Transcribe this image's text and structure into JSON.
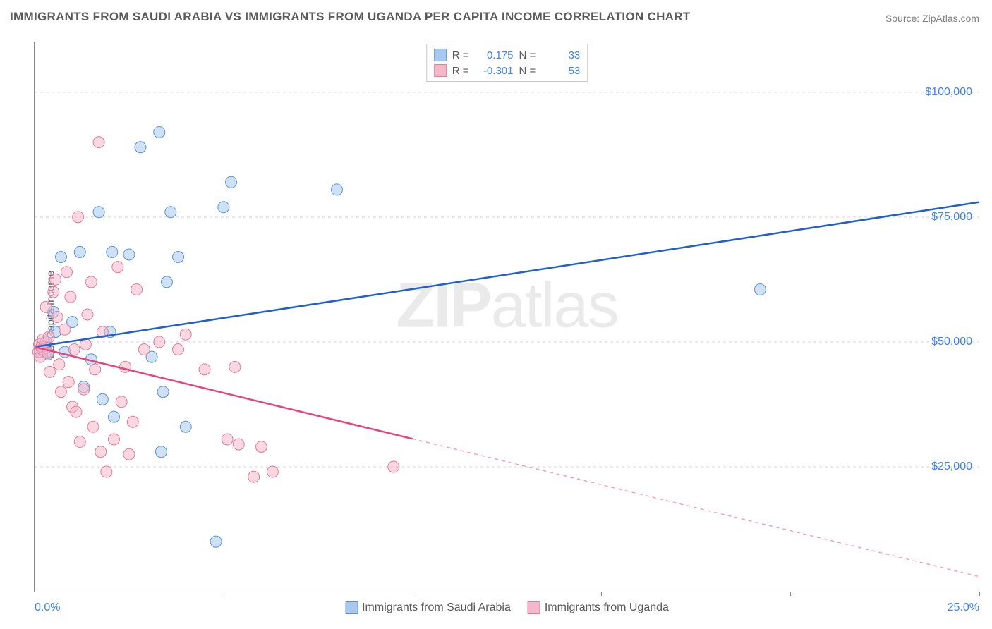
{
  "title": "IMMIGRANTS FROM SAUDI ARABIA VS IMMIGRANTS FROM UGANDA PER CAPITA INCOME CORRELATION CHART",
  "source": "Source: ZipAtlas.com",
  "watermark_bold": "ZIP",
  "watermark_rest": "atlas",
  "y_axis_title": "Per Capita Income",
  "chart": {
    "type": "scatter",
    "background_color": "#ffffff",
    "grid_color": "#d4d4d4",
    "axis_color": "#888888",
    "xlim": [
      0,
      25
    ],
    "ylim": [
      0,
      110000
    ],
    "x_tick_step": 5,
    "y_grid_values": [
      25000,
      50000,
      75000,
      100000
    ],
    "y_tick_labels": [
      "$25,000",
      "$50,000",
      "$75,000",
      "$100,000"
    ],
    "x_min_label": "0.0%",
    "x_max_label": "25.0%",
    "label_color": "#3b82f6",
    "label_fontsize": 16,
    "title_color": "#5a5a5a",
    "title_fontsize": 17,
    "marker_radius": 8,
    "marker_opacity": 0.55,
    "line_width": 2.5
  },
  "series": [
    {
      "name": "Immigrants from Saudi Arabia",
      "color_fill": "#a8c8f0",
      "color_stroke": "#5a94d6",
      "line_color": "#1f5fd0",
      "r_value": "0.175",
      "n_value": "33",
      "trend": {
        "x1": 0,
        "y1": 49000,
        "x2": 25,
        "y2": 78000,
        "solid_until_x": 25
      },
      "points": [
        [
          0.15,
          48000
        ],
        [
          0.2,
          49000
        ],
        [
          0.25,
          48500
        ],
        [
          0.3,
          50000
        ],
        [
          0.35,
          47500
        ],
        [
          0.5,
          56000
        ],
        [
          0.55,
          52000
        ],
        [
          0.7,
          67000
        ],
        [
          0.8,
          48000
        ],
        [
          1.0,
          54000
        ],
        [
          1.2,
          68000
        ],
        [
          1.3,
          41000
        ],
        [
          1.5,
          46500
        ],
        [
          1.7,
          76000
        ],
        [
          1.8,
          38500
        ],
        [
          2.0,
          52000
        ],
        [
          2.05,
          68000
        ],
        [
          2.1,
          35000
        ],
        [
          2.5,
          67500
        ],
        [
          2.8,
          89000
        ],
        [
          3.1,
          47000
        ],
        [
          3.3,
          92000
        ],
        [
          3.35,
          28000
        ],
        [
          3.4,
          40000
        ],
        [
          3.5,
          62000
        ],
        [
          3.6,
          76000
        ],
        [
          3.8,
          67000
        ],
        [
          4.0,
          33000
        ],
        [
          4.8,
          10000
        ],
        [
          5.0,
          77000
        ],
        [
          5.2,
          82000
        ],
        [
          8.0,
          80500
        ],
        [
          19.2,
          60500
        ]
      ]
    },
    {
      "name": "Immigrants from Uganda",
      "color_fill": "#f4b8c8",
      "color_stroke": "#e67a9a",
      "line_color": "#e6447a",
      "r_value": "-0.301",
      "n_value": "53",
      "trend": {
        "x1": 0,
        "y1": 49000,
        "x2": 25,
        "y2": 3000,
        "solid_until_x": 10
      },
      "points": [
        [
          0.1,
          48000
        ],
        [
          0.12,
          49500
        ],
        [
          0.15,
          47000
        ],
        [
          0.18,
          49000
        ],
        [
          0.2,
          48500
        ],
        [
          0.22,
          50500
        ],
        [
          0.3,
          57000
        ],
        [
          0.35,
          47800
        ],
        [
          0.38,
          51000
        ],
        [
          0.4,
          44000
        ],
        [
          0.5,
          60000
        ],
        [
          0.55,
          62500
        ],
        [
          0.6,
          55000
        ],
        [
          0.65,
          45500
        ],
        [
          0.7,
          40000
        ],
        [
          0.8,
          52500
        ],
        [
          0.85,
          64000
        ],
        [
          0.9,
          42000
        ],
        [
          0.95,
          59000
        ],
        [
          1.0,
          37000
        ],
        [
          1.05,
          48500
        ],
        [
          1.1,
          36000
        ],
        [
          1.15,
          75000
        ],
        [
          1.2,
          30000
        ],
        [
          1.3,
          40500
        ],
        [
          1.35,
          49500
        ],
        [
          1.4,
          55500
        ],
        [
          1.5,
          62000
        ],
        [
          1.55,
          33000
        ],
        [
          1.6,
          44500
        ],
        [
          1.7,
          90000
        ],
        [
          1.75,
          28000
        ],
        [
          1.8,
          52000
        ],
        [
          1.9,
          24000
        ],
        [
          2.1,
          30500
        ],
        [
          2.2,
          65000
        ],
        [
          2.3,
          38000
        ],
        [
          2.4,
          45000
        ],
        [
          2.5,
          27500
        ],
        [
          2.6,
          34000
        ],
        [
          2.7,
          60500
        ],
        [
          2.9,
          48500
        ],
        [
          3.3,
          50000
        ],
        [
          3.8,
          48500
        ],
        [
          4.0,
          51500
        ],
        [
          4.5,
          44500
        ],
        [
          5.1,
          30500
        ],
        [
          5.3,
          45000
        ],
        [
          5.4,
          29500
        ],
        [
          5.8,
          23000
        ],
        [
          6.0,
          29000
        ],
        [
          6.3,
          24000
        ],
        [
          9.5,
          25000
        ]
      ]
    }
  ],
  "legend_top": {
    "r_label": "R =",
    "n_label": "N ="
  }
}
